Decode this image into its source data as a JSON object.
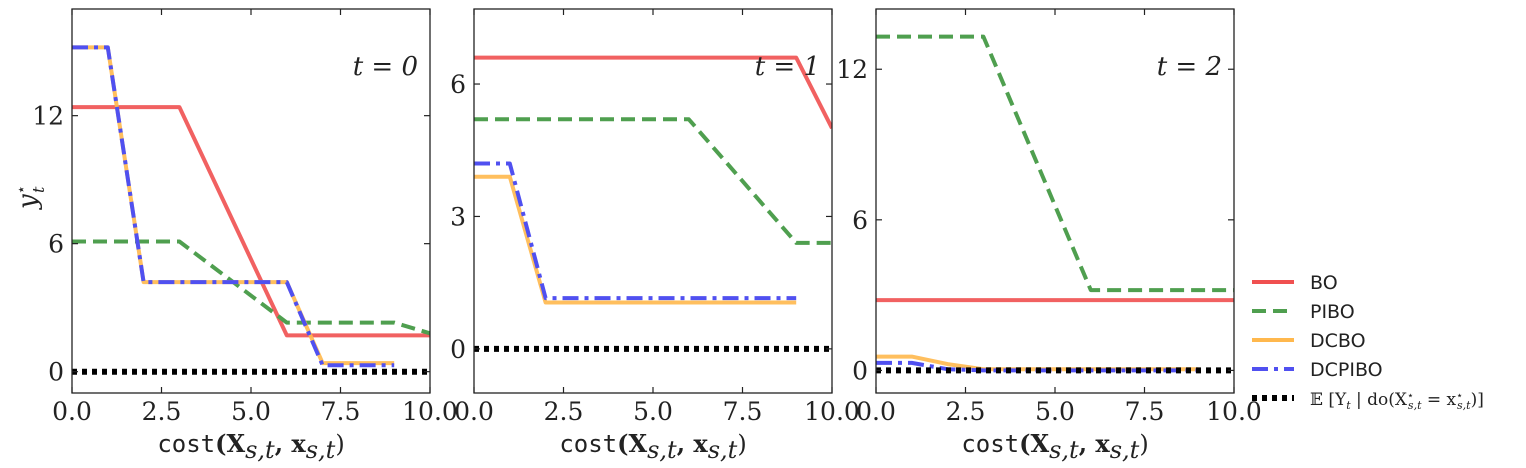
{
  "chart_data": [
    {
      "type": "line",
      "title": "t = 0",
      "xlabel_mono": "cost",
      "xlabel_math": "(X",
      "xlabel_sub1": "s,t",
      "xlabel_mid": ", x",
      "xlabel_sub2": "s,t",
      "xlabel_end": ")",
      "ylabel": "y",
      "ylabel_sup": "⋆",
      "ylabel_sub": "t",
      "xlim": [
        0,
        10
      ],
      "ylim": [
        -1,
        17
      ],
      "xticks": [
        0,
        2.5,
        5,
        7.5,
        10
      ],
      "xtick_labels": [
        "0.0",
        "2.5",
        "5.0",
        "7.5",
        "10.0"
      ],
      "yticks": [
        0,
        6,
        12
      ],
      "ytick_labels": [
        "0",
        "6",
        "12"
      ],
      "series": [
        {
          "key": "BO",
          "x": [
            0,
            3,
            6,
            10
          ],
          "y": [
            12.4,
            12.4,
            1.7,
            1.7
          ]
        },
        {
          "key": "PIBO",
          "x": [
            0,
            3,
            6,
            9,
            10
          ],
          "y": [
            6.1,
            6.1,
            2.3,
            2.3,
            1.8
          ]
        },
        {
          "key": "DCBO",
          "x": [
            0,
            1,
            2,
            6,
            7,
            9
          ],
          "y": [
            15.2,
            15.2,
            4.2,
            4.2,
            0.4,
            0.4
          ]
        },
        {
          "key": "DCPIBO",
          "x": [
            0,
            1,
            2,
            6,
            7,
            9
          ],
          "y": [
            15.2,
            15.2,
            4.2,
            4.2,
            0.3,
            0.3
          ]
        },
        {
          "key": "EXP",
          "x": [
            0,
            10
          ],
          "y": [
            0,
            0
          ]
        }
      ]
    },
    {
      "type": "line",
      "title": "t = 1",
      "xlabel_mono": "cost",
      "xlabel_math": "(X",
      "xlabel_sub1": "s,t",
      "xlabel_mid": ", x",
      "xlabel_sub2": "s,t",
      "xlabel_end": ")",
      "xlim": [
        0,
        10
      ],
      "ylim": [
        -1,
        7.7
      ],
      "xticks": [
        0,
        2.5,
        5,
        7.5,
        10
      ],
      "xtick_labels": [
        "0.0",
        "2.5",
        "5.0",
        "7.5",
        "10.0"
      ],
      "yticks": [
        0,
        3,
        6
      ],
      "ytick_labels": [
        "0",
        "3",
        "6"
      ],
      "series": [
        {
          "key": "BO",
          "x": [
            0,
            9,
            10
          ],
          "y": [
            6.6,
            6.6,
            5.0
          ]
        },
        {
          "key": "PIBO",
          "x": [
            0,
            6,
            9,
            10
          ],
          "y": [
            5.2,
            5.2,
            2.4,
            2.4
          ]
        },
        {
          "key": "DCBO",
          "x": [
            0,
            1,
            2,
            9
          ],
          "y": [
            3.9,
            3.9,
            1.05,
            1.05
          ]
        },
        {
          "key": "DCPIBO",
          "x": [
            0,
            1,
            2,
            9
          ],
          "y": [
            4.2,
            4.2,
            1.15,
            1.15
          ]
        },
        {
          "key": "EXP",
          "x": [
            0,
            10
          ],
          "y": [
            0,
            0
          ]
        }
      ]
    },
    {
      "type": "line",
      "title": "t = 2",
      "xlabel_mono": "cost",
      "xlabel_math": "(X",
      "xlabel_sub1": "s,t",
      "xlabel_mid": ", x",
      "xlabel_sub2": "s,t",
      "xlabel_end": ")",
      "xlim": [
        0,
        10
      ],
      "ylim": [
        -0.9,
        14.4
      ],
      "xticks": [
        0,
        2.5,
        5,
        7.5,
        10
      ],
      "xtick_labels": [
        "0.0",
        "2.5",
        "5.0",
        "7.5",
        "10.0"
      ],
      "yticks": [
        0,
        6,
        12
      ],
      "ytick_labels": [
        "0",
        "6",
        "12"
      ],
      "series": [
        {
          "key": "BO",
          "x": [
            0,
            10
          ],
          "y": [
            2.8,
            2.8
          ]
        },
        {
          "key": "PIBO",
          "x": [
            0,
            3,
            6,
            10
          ],
          "y": [
            13.3,
            13.3,
            3.2,
            3.2
          ]
        },
        {
          "key": "DCBO",
          "x": [
            0,
            1,
            2,
            3,
            9
          ],
          "y": [
            0.55,
            0.55,
            0.25,
            0.05,
            0.05
          ]
        },
        {
          "key": "DCPIBO",
          "x": [
            0,
            1,
            2,
            3,
            9
          ],
          "y": [
            0.3,
            0.3,
            0.05,
            0.0,
            0.0
          ]
        },
        {
          "key": "EXP",
          "x": [
            0,
            10
          ],
          "y": [
            0,
            0
          ]
        }
      ]
    }
  ],
  "legend": {
    "placement": "lower-right outside",
    "items": [
      {
        "key": "BO",
        "label": "BO",
        "color": "#f05050",
        "style": "solid"
      },
      {
        "key": "PIBO",
        "label": "PIBO",
        "color": "#4f9f4f",
        "style": "dashed"
      },
      {
        "key": "DCBO",
        "label": "DCBO",
        "color": "#ffb84d",
        "style": "solid"
      },
      {
        "key": "DCPIBO",
        "label": "DCPIBO",
        "color": "#5050f0",
        "style": "dashdot"
      },
      {
        "key": "EXP",
        "label": "𝔼 [Y",
        "label_sub": "t",
        "label_rest": " | do(X",
        "label_sup": "⋆",
        "label_sub2": "s,t",
        "label_mid": " = x",
        "label_sup2": "⋆",
        "label_sub3": "s,t",
        "label_end": ")]",
        "color": "#000000",
        "style": "dotted"
      }
    ]
  }
}
